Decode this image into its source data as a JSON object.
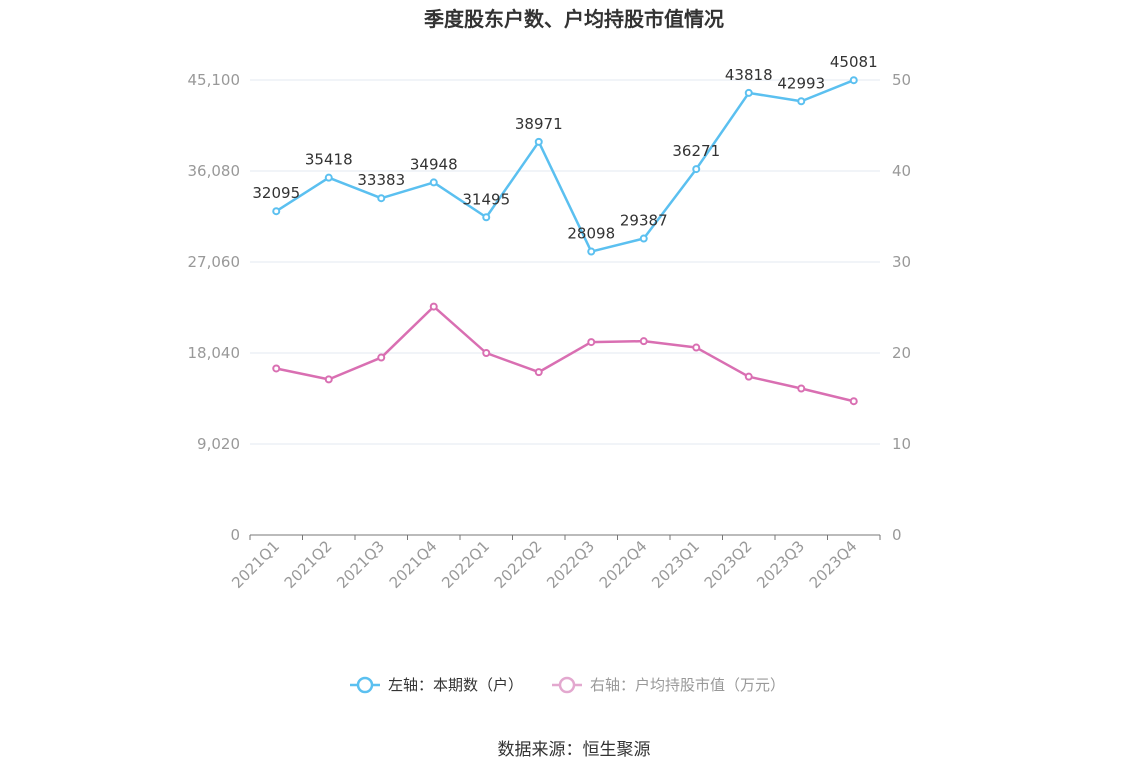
{
  "colors": {
    "series_left": "#5bc0f0",
    "series_right": "#d96fb2",
    "axis": "#999999",
    "grid": "#e3e8f0",
    "text": "#333333"
  },
  "chart_data": {
    "type": "line",
    "title": "季度股东户数、户均持股市值情况",
    "categories": [
      "2021Q1",
      "2021Q2",
      "2021Q3",
      "2021Q4",
      "2022Q1",
      "2022Q2",
      "2022Q3",
      "2022Q4",
      "2023Q1",
      "2023Q2",
      "2023Q3",
      "2023Q4"
    ],
    "y_left": {
      "ticks": [
        "0",
        "9,020",
        "18,040",
        "27,060",
        "36,080",
        "45,100"
      ],
      "range": [
        0,
        45100
      ]
    },
    "y_right": {
      "ticks": [
        "0",
        "10",
        "20",
        "30",
        "40",
        "50"
      ],
      "range": [
        0,
        50
      ]
    },
    "grid": true,
    "legend_position": "bottom-center",
    "series": [
      {
        "name": "左轴：本期数（户）",
        "axis": "left",
        "values": [
          32095,
          35418,
          33383,
          34948,
          31495,
          38971,
          28098,
          29387,
          36271,
          43818,
          42993,
          45081
        ],
        "labels": [
          "32095",
          "35418",
          "33383",
          "34948",
          "31495",
          "38971",
          "28098",
          "29387",
          "36271",
          "43818",
          "42993",
          "45081"
        ]
      },
      {
        "name": "右轴：户均持股市值（万元）",
        "axis": "right",
        "values": [
          18.3,
          17.1,
          19.5,
          25.1,
          20.0,
          17.9,
          21.2,
          21.3,
          20.6,
          17.4,
          16.1,
          14.7
        ]
      }
    ]
  },
  "source": "数据来源：恒生聚源"
}
